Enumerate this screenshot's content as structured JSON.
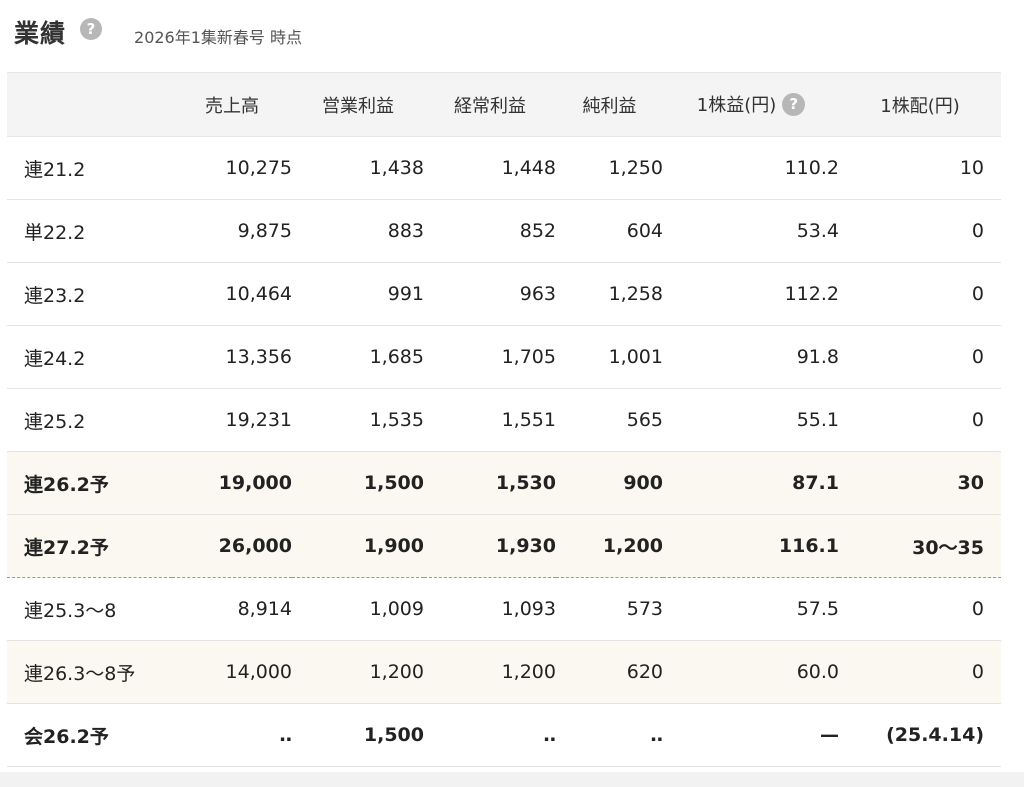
{
  "header": {
    "title": "業績",
    "help_icon_glyph": "?",
    "as_of": "2026年1集新春号 時点"
  },
  "table": {
    "columns": [
      {
        "label": "",
        "help": false
      },
      {
        "label": "売上高",
        "help": false
      },
      {
        "label": "営業利益",
        "help": false
      },
      {
        "label": "経常利益",
        "help": false
      },
      {
        "label": "純利益",
        "help": false
      },
      {
        "label": "1株益(円)",
        "help": true
      },
      {
        "label": "1株配(円)",
        "help": false
      }
    ],
    "rows": [
      {
        "cells": [
          "連21.2",
          "10,275",
          "1,438",
          "1,448",
          "1,250",
          "110.2",
          "10"
        ],
        "style": "normal"
      },
      {
        "cells": [
          "単22.2",
          "9,875",
          "883",
          "852",
          "604",
          "53.4",
          "0"
        ],
        "style": "normal"
      },
      {
        "cells": [
          "連23.2",
          "10,464",
          "991",
          "963",
          "1,258",
          "112.2",
          "0"
        ],
        "style": "normal"
      },
      {
        "cells": [
          "連24.2",
          "13,356",
          "1,685",
          "1,705",
          "1,001",
          "91.8",
          "0"
        ],
        "style": "normal"
      },
      {
        "cells": [
          "連25.2",
          "19,231",
          "1,535",
          "1,551",
          "565",
          "55.1",
          "0"
        ],
        "style": "normal"
      },
      {
        "cells": [
          "連26.2予",
          "19,000",
          "1,500",
          "1,530",
          "900",
          "87.1",
          "30"
        ],
        "style": "forecast-bold"
      },
      {
        "cells": [
          "連27.2予",
          "26,000",
          "1,900",
          "1,930",
          "1,200",
          "116.1",
          "30〜35"
        ],
        "style": "forecast-bold-dashed"
      },
      {
        "cells": [
          "連25.3〜8",
          "8,914",
          "1,009",
          "1,093",
          "573",
          "57.5",
          "0"
        ],
        "style": "normal"
      },
      {
        "cells": [
          "連26.3〜8予",
          "14,000",
          "1,200",
          "1,200",
          "620",
          "60.0",
          "0"
        ],
        "style": "forecast"
      },
      {
        "cells": [
          "会26.2予",
          "‥",
          "1,500",
          "‥",
          "‥",
          "—",
          "(25.4.14)"
        ],
        "style": "bold-final"
      }
    ]
  },
  "colors": {
    "header_bg": "#f4f4f4",
    "forecast_bg": "#fbf8f1",
    "help_icon_bg": "#b7b7b7",
    "border": "#e3e3e3"
  }
}
